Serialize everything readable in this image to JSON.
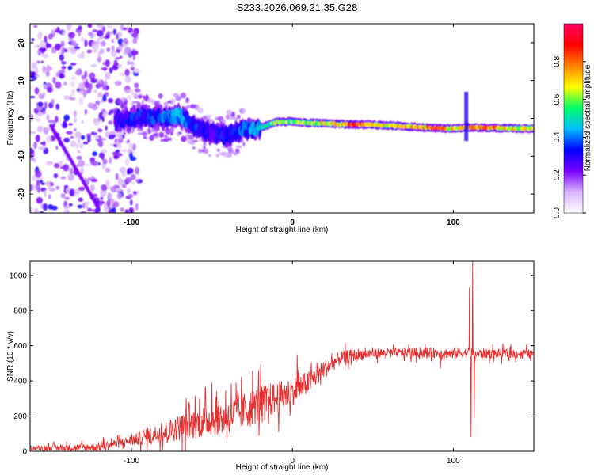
{
  "title": "S233.2026.069.21.35.G28",
  "chart_data": [
    {
      "type": "heatmap",
      "title": "S233.2026.069.21.35.G28",
      "xlabel": "Height of straight line (km)",
      "ylabel": "Frequency (Hz)",
      "xlim": [
        -163,
        150
      ],
      "ylim": [
        -25,
        25
      ],
      "x_ticks": [
        -100,
        0,
        100
      ],
      "x_tick_labels": [
        "-100",
        "0",
        "100"
      ],
      "y_ticks": [
        -20,
        -10,
        0,
        10,
        20
      ],
      "y_tick_labels": [
        "-20",
        "-10",
        "0",
        "10",
        "20"
      ],
      "colorbar": {
        "label": "Normalized spectral amplitude",
        "range": [
          0,
          1
        ],
        "ticks": [
          0.0,
          0.2,
          0.4,
          0.6,
          0.8
        ],
        "tick_labels": [
          "0.0",
          "0.2",
          "0.4",
          "0.6",
          "0.8"
        ],
        "colors": [
          "#ffffff",
          "#d9b3ff",
          "#7a00ff",
          "#0000ff",
          "#00bfff",
          "#00ff66",
          "#ffff00",
          "#ff8000",
          "#ff0000",
          "#ff0066"
        ]
      },
      "ridge": {
        "x": [
          -110,
          -100,
          -90,
          -80,
          -70,
          -60,
          -50,
          -40,
          -30,
          -20,
          -10,
          0,
          10,
          20,
          30,
          40,
          50,
          60,
          70,
          80,
          90,
          100,
          110,
          120,
          130,
          140,
          150
        ],
        "y": [
          -0.5,
          0.0,
          0.5,
          0.0,
          0.8,
          -2.5,
          -4.0,
          -4.5,
          -3.0,
          -2.5,
          -1.0,
          -0.8,
          -1.2,
          -1.3,
          -1.5,
          -1.6,
          -1.7,
          -1.9,
          -2.1,
          -2.4,
          -2.6,
          -2.7,
          -2.4,
          -2.5,
          -2.6,
          -2.7,
          -2.7
        ],
        "amplitude": [
          0.3,
          0.35,
          0.35,
          0.4,
          0.45,
          0.35,
          0.3,
          0.35,
          0.4,
          0.5,
          0.65,
          0.6,
          0.65,
          0.7,
          0.8,
          0.92,
          0.75,
          0.7,
          0.85,
          0.75,
          0.9,
          0.7,
          0.8,
          0.88,
          0.75,
          0.7,
          0.75
        ]
      },
      "spike": {
        "x": 108,
        "ylim": [
          -6,
          7
        ],
        "amplitude": 0.3
      },
      "noise_region": {
        "x": [
          -163,
          -110
        ],
        "ylim": [
          -25,
          25
        ],
        "amplitude": 0.15
      }
    },
    {
      "type": "line",
      "xlabel": "Height of straight line (km)",
      "ylabel": "SNR (10 * v/v)",
      "xlim": [
        -163,
        150
      ],
      "ylim": [
        0,
        1080
      ],
      "x_ticks": [
        -100,
        0,
        100
      ],
      "x_tick_labels": [
        "-100",
        "0",
        "100"
      ],
      "y_ticks": [
        0,
        200,
        400,
        600,
        800,
        1000
      ],
      "y_tick_labels": [
        "0",
        "200",
        "400",
        "600",
        "800",
        "1000"
      ],
      "series": [
        {
          "name": "SNR",
          "color": "#e83030",
          "envelope_x": [
            -163,
            -140,
            -120,
            -100,
            -80,
            -60,
            -50,
            -40,
            -30,
            -20,
            -10,
            0,
            10,
            20,
            30,
            40,
            60,
            80,
            90,
            100,
            105,
            110,
            112,
            114,
            120,
            150
          ],
          "envelope_y": [
            20,
            20,
            25,
            60,
            110,
            160,
            180,
            200,
            230,
            270,
            300,
            340,
            390,
            470,
            530,
            550,
            560,
            560,
            560,
            555,
            560,
            560,
            560,
            555,
            555,
            555
          ],
          "noise_x": [
            -163,
            -100,
            -60,
            -20,
            0,
            30,
            60,
            100,
            150
          ],
          "noise_amp": [
            12,
            30,
            90,
            110,
            80,
            40,
            25,
            30,
            25
          ],
          "peaks": [
            {
              "x": -50,
              "y": 390
            },
            {
              "x": -35,
              "y": 390
            },
            {
              "x": -21,
              "y": 460
            },
            {
              "x": 3,
              "y": 550
            },
            {
              "x": 92,
              "y": 470
            },
            {
              "x": 110,
              "y": 930
            },
            {
              "x": 112,
              "y": 1080
            },
            {
              "x": 111,
              "y": 80
            },
            {
              "x": 113,
              "y": 190
            }
          ]
        }
      ]
    }
  ]
}
